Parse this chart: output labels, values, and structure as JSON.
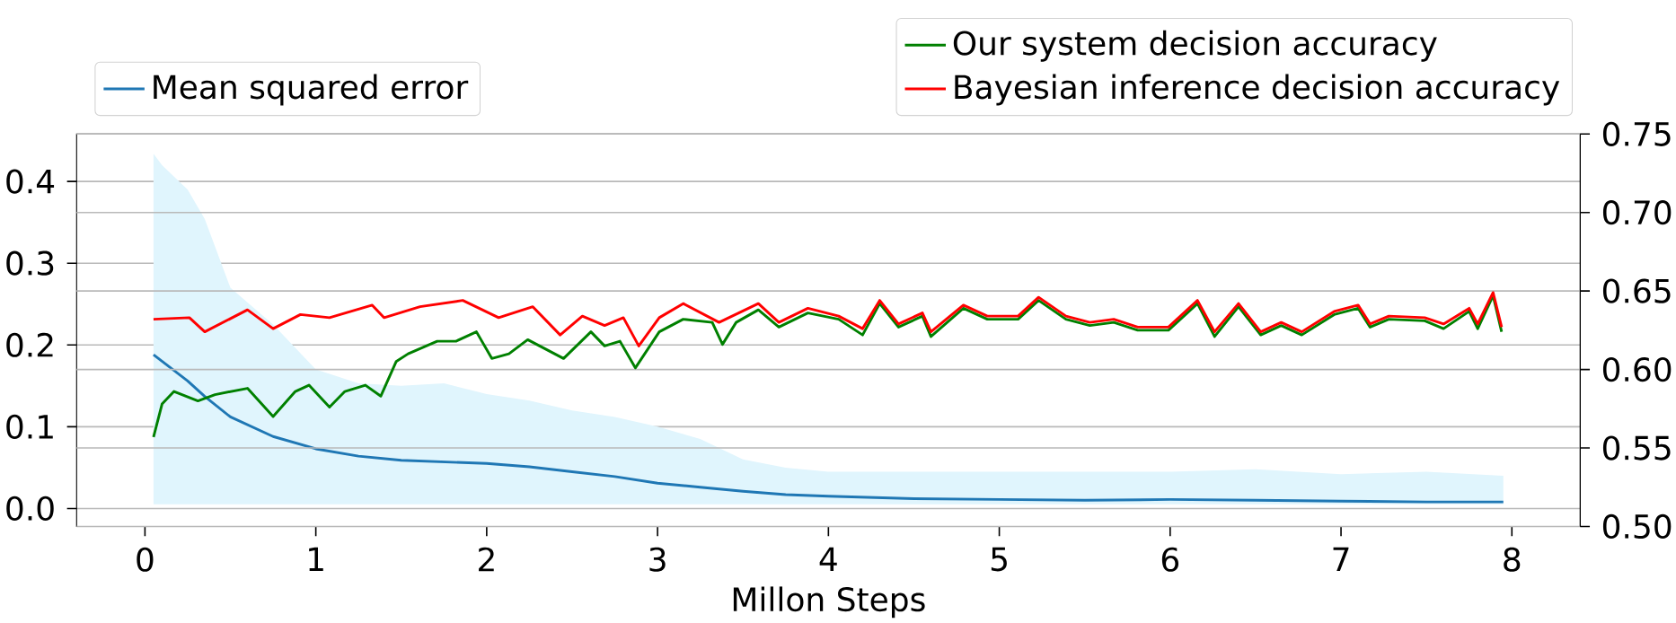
{
  "chart_data": {
    "type": "line",
    "xlabel": "Millon Steps",
    "xlim": [
      -0.4,
      8.4
    ],
    "xticks": [
      0,
      1,
      2,
      3,
      4,
      5,
      6,
      7,
      8
    ],
    "ylim": [
      -0.022,
      0.458
    ],
    "yticks": [
      {
        "value": 0,
        "label": "0.0"
      },
      {
        "value": 0.1,
        "label": "0.1"
      },
      {
        "value": 0.2,
        "label": "0.2"
      },
      {
        "value": 0.3,
        "label": "0.3"
      },
      {
        "value": 0.4,
        "label": "0.4"
      }
    ],
    "y2lim": [
      0.5,
      0.75
    ],
    "y2ticks": [
      {
        "value": 0.5,
        "label": "0.50"
      },
      {
        "value": 0.55,
        "label": "0.55"
      },
      {
        "value": 0.6,
        "label": "0.60"
      },
      {
        "value": 0.65,
        "label": "0.65"
      },
      {
        "value": 0.7,
        "label": "0.70"
      },
      {
        "value": 0.75,
        "label": "0.75"
      }
    ],
    "grid": "y",
    "legend": "top",
    "series": [
      {
        "name": "Mean squared error",
        "color": "#1f77b4",
        "x": [
          0.05,
          0.1,
          0.25,
          0.35,
          0.5,
          0.75,
          1,
          1.25,
          1.5,
          1.75,
          2,
          2.25,
          2.5,
          2.75,
          3,
          3.25,
          3.5,
          3.75,
          4,
          4.5,
          5,
          5.5,
          6,
          6.5,
          7,
          7.5,
          7.95
        ],
        "values": [
          0.188,
          0.18,
          0.156,
          0.137,
          0.112,
          0.088,
          0.073,
          0.064,
          0.059,
          0.057,
          0.055,
          0.051,
          0.045,
          0.039,
          0.031,
          0.026,
          0.021,
          0.017,
          0.015,
          0.012,
          0.011,
          0.01,
          0.011,
          0.01,
          0.009,
          0.008,
          0.008
        ],
        "lower": [
          0.005,
          0.005,
          0.005,
          0.005,
          0.005,
          0.005,
          0.005,
          0.005,
          0.005,
          0.005,
          0.005,
          0.005,
          0.005,
          0.005,
          0.005,
          0.005,
          0.005,
          0.005,
          0.005,
          0.005,
          0.005,
          0.005,
          0.005,
          0.005,
          0.005,
          0.005,
          0.005
        ],
        "upper": [
          0.434,
          0.42,
          0.39,
          0.354,
          0.27,
          0.225,
          0.17,
          0.153,
          0.15,
          0.153,
          0.14,
          0.132,
          0.12,
          0.112,
          0.1,
          0.085,
          0.06,
          0.05,
          0.045,
          0.045,
          0.045,
          0.045,
          0.045,
          0.048,
          0.042,
          0.045,
          0.04
        ]
      },
      {
        "name": "Our system decision accuracy",
        "color": "#008000",
        "axis": "y2",
        "x": [
          0.05,
          0.1,
          0.17,
          0.31,
          0.41,
          0.6,
          0.75,
          0.88,
          0.96,
          1.08,
          1.17,
          1.29,
          1.38,
          1.47,
          1.54,
          1.71,
          1.82,
          1.94,
          2.03,
          2.13,
          2.24,
          2.45,
          2.61,
          2.69,
          2.78,
          2.87,
          3.01,
          3.15,
          3.32,
          3.38,
          3.46,
          3.59,
          3.71,
          3.88,
          4.06,
          4.2,
          4.3,
          4.41,
          4.55,
          4.6,
          4.79,
          4.93,
          5.11,
          5.23,
          5.39,
          5.53,
          5.67,
          5.81,
          5.99,
          6.16,
          6.26,
          6.4,
          6.53,
          6.65,
          6.77,
          6.96,
          7.1,
          7.17,
          7.28,
          7.49,
          7.6,
          7.75,
          7.8,
          7.89,
          7.94
        ],
        "values": [
          0.557,
          0.578,
          0.586,
          0.58,
          0.584,
          0.588,
          0.57,
          0.586,
          0.59,
          0.576,
          0.586,
          0.59,
          0.583,
          0.605,
          0.61,
          0.618,
          0.618,
          0.624,
          0.607,
          0.61,
          0.619,
          0.607,
          0.624,
          0.615,
          0.618,
          0.601,
          0.624,
          0.632,
          0.63,
          0.616,
          0.63,
          0.638,
          0.627,
          0.636,
          0.632,
          0.622,
          0.642,
          0.627,
          0.634,
          0.621,
          0.639,
          0.632,
          0.632,
          0.644,
          0.632,
          0.628,
          0.63,
          0.625,
          0.625,
          0.642,
          0.621,
          0.64,
          0.622,
          0.628,
          0.622,
          0.635,
          0.639,
          0.627,
          0.632,
          0.631,
          0.626,
          0.637,
          0.626,
          0.647,
          0.624
        ]
      },
      {
        "name": "Bayesian inference decision accuracy",
        "color": "#ff0000",
        "axis": "y2",
        "x": [
          0.05,
          0.26,
          0.35,
          0.6,
          0.75,
          0.91,
          1.08,
          1.33,
          1.4,
          1.61,
          1.86,
          2.07,
          2.27,
          2.43,
          2.56,
          2.69,
          2.8,
          2.89,
          3.01,
          3.15,
          3.36,
          3.59,
          3.71,
          3.88,
          4.06,
          4.2,
          4.3,
          4.41,
          4.55,
          4.6,
          4.79,
          4.93,
          5.11,
          5.23,
          5.39,
          5.53,
          5.67,
          5.81,
          5.99,
          6.16,
          6.26,
          6.4,
          6.53,
          6.65,
          6.77,
          6.96,
          7.1,
          7.17,
          7.28,
          7.49,
          7.6,
          7.75,
          7.8,
          7.89,
          7.94
        ],
        "values": [
          0.632,
          0.633,
          0.624,
          0.638,
          0.626,
          0.635,
          0.633,
          0.641,
          0.633,
          0.64,
          0.644,
          0.633,
          0.64,
          0.622,
          0.634,
          0.628,
          0.633,
          0.615,
          0.633,
          0.642,
          0.63,
          0.642,
          0.63,
          0.639,
          0.634,
          0.626,
          0.644,
          0.629,
          0.636,
          0.624,
          0.641,
          0.634,
          0.634,
          0.646,
          0.634,
          0.63,
          0.632,
          0.627,
          0.627,
          0.644,
          0.624,
          0.642,
          0.624,
          0.63,
          0.624,
          0.637,
          0.641,
          0.629,
          0.634,
          0.633,
          0.629,
          0.639,
          0.629,
          0.649,
          0.627
        ]
      }
    ]
  }
}
